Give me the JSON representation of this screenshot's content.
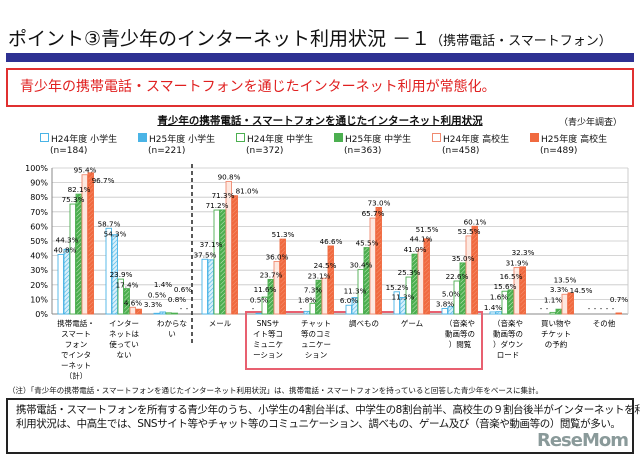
{
  "header": {
    "title": "ポイント③青少年のインターネット利用状況 －１",
    "subtitle": "（携帯電話・スマートフォン）"
  },
  "lead": "青少年の携帯電話・スマートフォンを通じたインターネット利用が常態化。",
  "source": "（青少年調査）",
  "note": "（注）「青少年の携帯電話・スマートフォンを通じたインターネット利用状況」は、携帯電話・スマートフォンを持っていると回答した青少年をベースに集計。",
  "summary": [
    "携帯電話・スマートフォンを所有する青少年のうち、小学生の4割台半ば、中学生の8割台前半、高校生の９割台後半がインターネットを利用。",
    "利用状況は、中高生では、SNSサイト等やチャット等のコミュニケーション、調べもの、ゲーム及び（音楽や動画等の）閲覧が多い。"
  ],
  "logo": "ReseMom",
  "chart_data": {
    "type": "bar",
    "title": "青少年の携帯電話・スマートフォンを通じたインターネット利用状況",
    "ylim": [
      0,
      100
    ],
    "yticks": [
      "0%",
      "10%",
      "20%",
      "30%",
      "40%",
      "50%",
      "60%",
      "70%",
      "80%",
      "90%",
      "100%"
    ],
    "grid": true,
    "legend_position": "top",
    "categories": [
      "携帯電話・スマートフォンでインターネット（計）",
      "インターネットは使っていない",
      "わからない",
      "メール",
      "SNSサイト等コミュニケーション",
      "チャット等のコミュニケーション",
      "調べもの",
      "ゲーム",
      "（音楽や動画等の）閲覧",
      "（音楽や動画等の）ダウンロード",
      "買い物やチケットの予約",
      "その他"
    ],
    "highlighted_categories": [
      "SNSサイト等コミュニケーション",
      "チャット等のコミュニケーション",
      "調べもの",
      "ゲーム",
      "（音楽や動画等の）閲覧"
    ],
    "series": [
      {
        "name": "H24年度 小学生",
        "n": "(n=184)",
        "color": "#4ab4e6",
        "hatched": false,
        "values": [
          40.8,
          58.7,
          0.5,
          37.5,
          null,
          null,
          6.0,
          15.2,
          3.8,
          1.4,
          null,
          null
        ]
      },
      {
        "name": "H25年度 小学生",
        "n": "(n=221)",
        "color": "#4ab4e6",
        "hatched": true,
        "values": [
          44.3,
          54.3,
          1.4,
          37.1,
          0.5,
          1.8,
          11.3,
          11.3,
          5.0,
          1.6,
          null,
          null
        ]
      },
      {
        "name": "H24年度 中学生",
        "n": "(n=372)",
        "color": "#4caf50",
        "hatched": false,
        "values": [
          75.3,
          23.9,
          0.8,
          71.2,
          11.6,
          7.3,
          30.4,
          25.3,
          22.6,
          15.6,
          1.1,
          null
        ]
      },
      {
        "name": "H25年度 中学生",
        "n": "(n=363)",
        "color": "#4caf50",
        "hatched": true,
        "values": [
          82.1,
          17.4,
          0.6,
          71.3,
          23.7,
          23.1,
          45.5,
          41.0,
          35.0,
          16.5,
          3.3,
          null
        ]
      },
      {
        "name": "H24年度 高校生",
        "n": "(n=458)",
        "color": "#f08a70",
        "hatched": false,
        "values": [
          95.4,
          4.6,
          null,
          90.8,
          36.0,
          24.5,
          65.7,
          44.1,
          53.5,
          31.9,
          13.5,
          null
        ]
      },
      {
        "name": "H25年度 高校生",
        "n": "(n=489)",
        "color": "#f06a40",
        "hatched": true,
        "values": [
          96.7,
          3.3,
          null,
          81.0,
          51.3,
          46.6,
          73.0,
          51.5,
          60.1,
          32.3,
          14.5,
          0.7
        ]
      }
    ],
    "category_labels": [
      [
        "携帯電話・",
        "スマート",
        "フォン",
        "でインタ",
        "ーネット",
        "（計）"
      ],
      [
        "インター",
        "ネットは",
        "使ってい",
        "ない"
      ],
      [
        "わからな",
        "い"
      ],
      [
        "メール"
      ],
      [
        "SNSサ",
        "イト等コ",
        "ミュニケ",
        "ーション"
      ],
      [
        "チャット",
        "等のコミ",
        "ュニケー",
        "ション"
      ],
      [
        "調べもの"
      ],
      [
        "ゲーム"
      ],
      [
        "（音楽や",
        "動画等の",
        "）閲覧"
      ],
      [
        "（音楽や",
        "動画等の",
        "）ダウン",
        "ロード"
      ],
      [
        "買い物や",
        "チケット",
        "の予約"
      ],
      [
        "その他"
      ]
    ]
  }
}
